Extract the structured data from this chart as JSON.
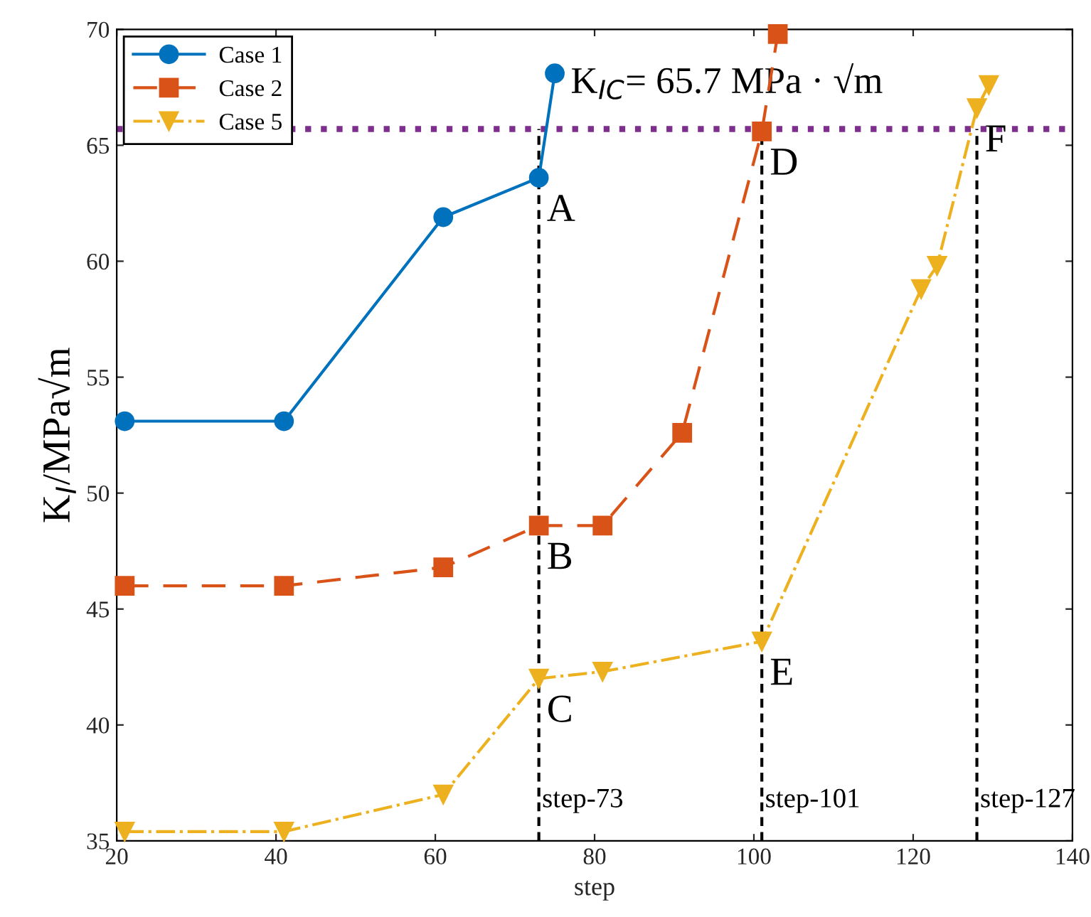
{
  "chart_data": {
    "type": "line",
    "xlabel": "step",
    "ylabel": "K$_{I}$/MPa√m",
    "xlim": [
      20,
      140
    ],
    "ylim": [
      35,
      70
    ],
    "xticks": [
      20,
      40,
      60,
      80,
      100,
      120,
      140
    ],
    "yticks": [
      35,
      40,
      45,
      50,
      55,
      60,
      65,
      70
    ],
    "grid": false,
    "legend": "top left",
    "series": [
      {
        "name": "Case 1",
        "color": "#0072bd",
        "marker": "circle",
        "line_style": "solid",
        "x": [
          21,
          41,
          61,
          73,
          75
        ],
        "values": [
          53.1,
          53.1,
          61.9,
          63.6,
          68.1
        ]
      },
      {
        "name": "Case 2",
        "color": "#d95319",
        "marker": "square",
        "line_style": "dashed",
        "x": [
          21,
          41,
          61,
          73,
          81,
          91,
          101,
          103
        ],
        "values": [
          46.0,
          46.0,
          46.8,
          48.6,
          48.6,
          52.6,
          65.6,
          69.8
        ]
      },
      {
        "name": "Case 5",
        "color": "#edb120",
        "marker": "triangle",
        "line_style": "dashdot",
        "x": [
          21,
          41,
          61,
          73,
          81,
          101,
          121,
          123,
          128,
          129.5
        ],
        "values": [
          35.4,
          35.4,
          37.0,
          42.0,
          42.3,
          43.6,
          58.8,
          59.8,
          66.6,
          67.6
        ]
      }
    ],
    "ref_lines": [
      {
        "axis": "y",
        "value": 65.7,
        "label": "K$_{IC}$= 65.7 MPa · √m",
        "color": "#7e2f8e",
        "line_style": "dotted"
      },
      {
        "axis": "x",
        "value": 73,
        "label": "step-73",
        "color": "#000000",
        "line_style": "dashed"
      },
      {
        "axis": "x",
        "value": 101,
        "label": "step-101",
        "color": "#000000",
        "line_style": "dashed"
      },
      {
        "axis": "x",
        "value": 128,
        "label": "step-127",
        "color": "#000000",
        "line_style": "dashed"
      }
    ],
    "annotations": [
      {
        "text": "A",
        "x": 73,
        "y": 63.6
      },
      {
        "text": "B",
        "x": 73,
        "y": 48.6
      },
      {
        "text": "C",
        "x": 73,
        "y": 42.0
      },
      {
        "text": "D",
        "x": 101,
        "y": 65.6
      },
      {
        "text": "E",
        "x": 101,
        "y": 43.6
      },
      {
        "text": "F",
        "x": 128,
        "y": 66.6
      }
    ]
  }
}
